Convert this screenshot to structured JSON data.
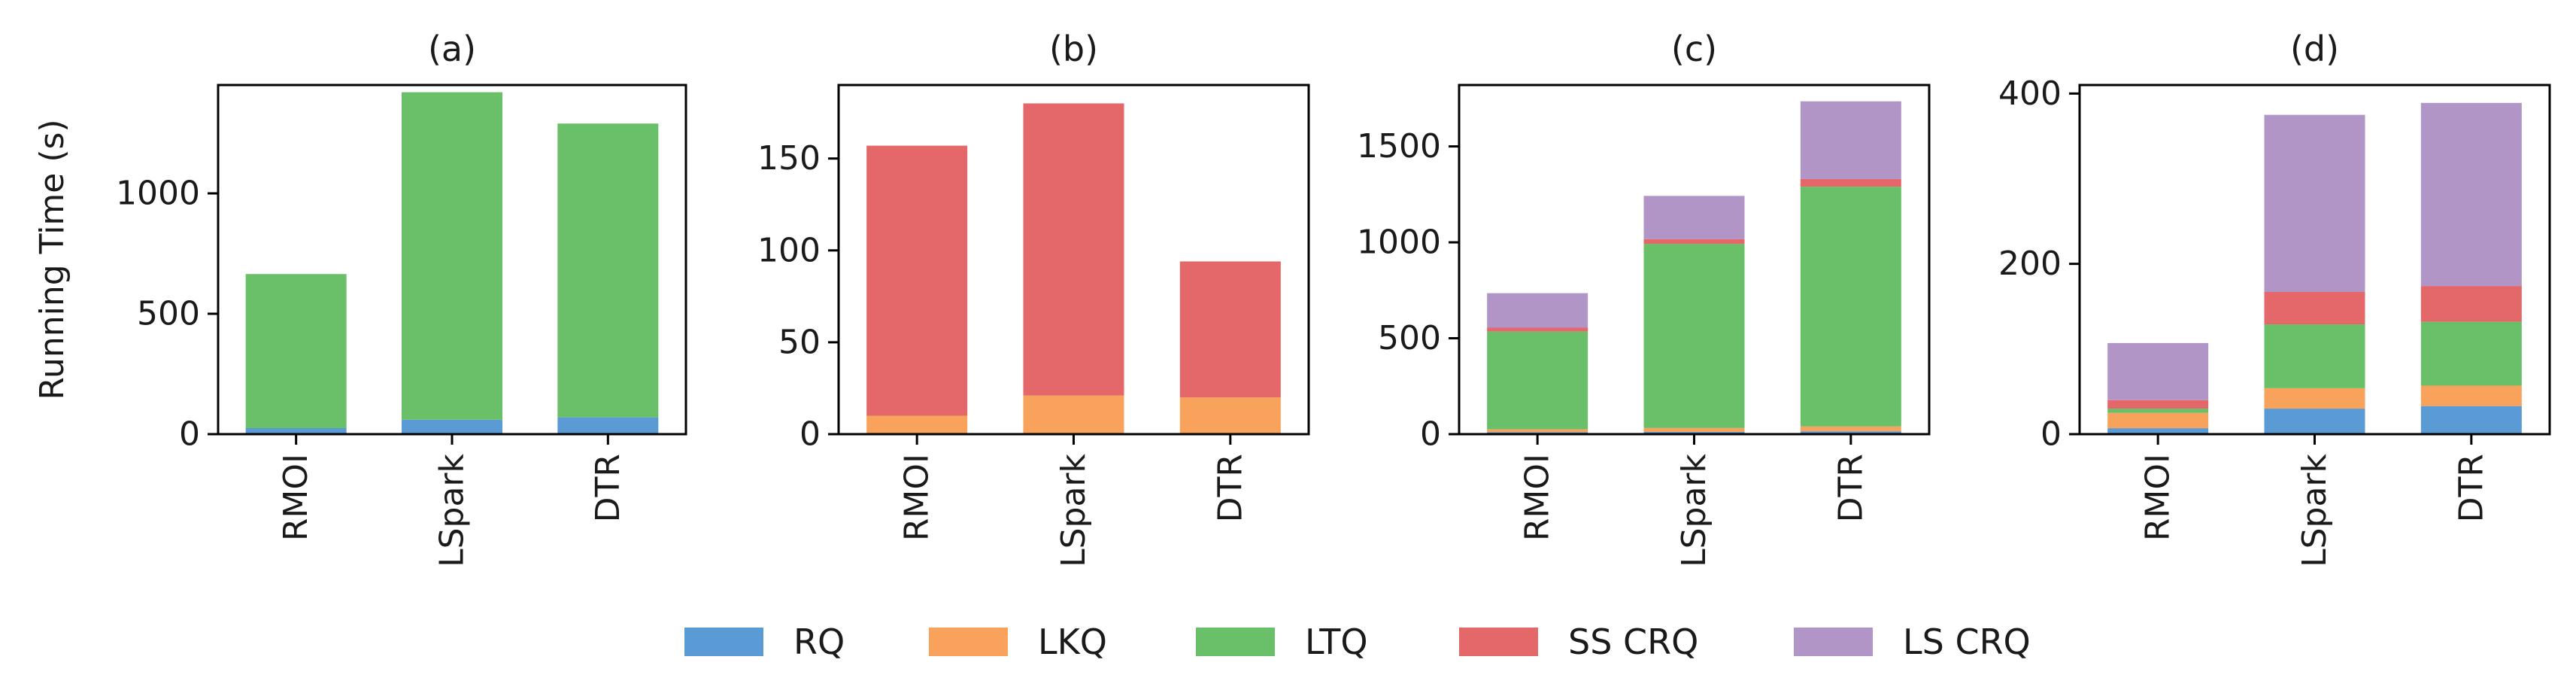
{
  "chart_data": {
    "type": "bar",
    "stacked": true,
    "ylabel": "Running Time (s)",
    "categories": [
      "RMOI",
      "LSpark",
      "DTR"
    ],
    "legend": {
      "placement": "bottom",
      "entries": [
        {
          "name": "RQ",
          "color": "#5b9bd5"
        },
        {
          "name": "LKQ",
          "color": "#f9a25b"
        },
        {
          "name": "LTQ",
          "color": "#6abf69"
        },
        {
          "name": "SS CRQ",
          "color": "#e4676a"
        },
        {
          "name": "LS CRQ",
          "color": "#b195c7"
        }
      ]
    },
    "panels": [
      {
        "title": "(a)",
        "ylim": [
          0,
          1450
        ],
        "yticks": [
          0,
          500,
          1000
        ],
        "series": [
          {
            "name": "RQ",
            "values": [
              25,
              60,
              70
            ]
          },
          {
            "name": "LKQ",
            "values": [
              0,
              0,
              0
            ]
          },
          {
            "name": "LTQ",
            "values": [
              640,
              1360,
              1220
            ]
          },
          {
            "name": "SS CRQ",
            "values": [
              0,
              0,
              0
            ]
          },
          {
            "name": "LS CRQ",
            "values": [
              0,
              0,
              0
            ]
          }
        ]
      },
      {
        "title": "(b)",
        "ylim": [
          0,
          190
        ],
        "yticks": [
          0,
          50,
          100,
          150
        ],
        "series": [
          {
            "name": "RQ",
            "values": [
              0,
              0,
              0
            ]
          },
          {
            "name": "LKQ",
            "values": [
              10,
              21,
              20
            ]
          },
          {
            "name": "LTQ",
            "values": [
              0,
              0,
              0
            ]
          },
          {
            "name": "SS CRQ",
            "values": [
              147,
              159,
              74
            ]
          },
          {
            "name": "LS CRQ",
            "values": [
              0,
              0,
              0
            ]
          }
        ]
      },
      {
        "title": "(c)",
        "ylim": [
          0,
          1820
        ],
        "yticks": [
          0,
          500,
          1000,
          1500
        ],
        "series": [
          {
            "name": "RQ",
            "values": [
              10,
              12,
              15
            ]
          },
          {
            "name": "LKQ",
            "values": [
              15,
              20,
              25
            ]
          },
          {
            "name": "LTQ",
            "values": [
              510,
              960,
              1250
            ]
          },
          {
            "name": "SS CRQ",
            "values": [
              20,
              25,
              40
            ]
          },
          {
            "name": "LS CRQ",
            "values": [
              180,
              225,
              405
            ]
          }
        ]
      },
      {
        "title": "(d)",
        "ylim": [
          0,
          410
        ],
        "yticks": [
          0,
          200,
          400
        ],
        "series": [
          {
            "name": "RQ",
            "values": [
              7,
              30,
              33
            ]
          },
          {
            "name": "LKQ",
            "values": [
              18,
              24,
              24
            ]
          },
          {
            "name": "LTQ",
            "values": [
              5,
              75,
              75
            ]
          },
          {
            "name": "SS CRQ",
            "values": [
              10,
              38,
              42
            ]
          },
          {
            "name": "LS CRQ",
            "values": [
              67,
              208,
              215
            ]
          }
        ]
      }
    ]
  }
}
